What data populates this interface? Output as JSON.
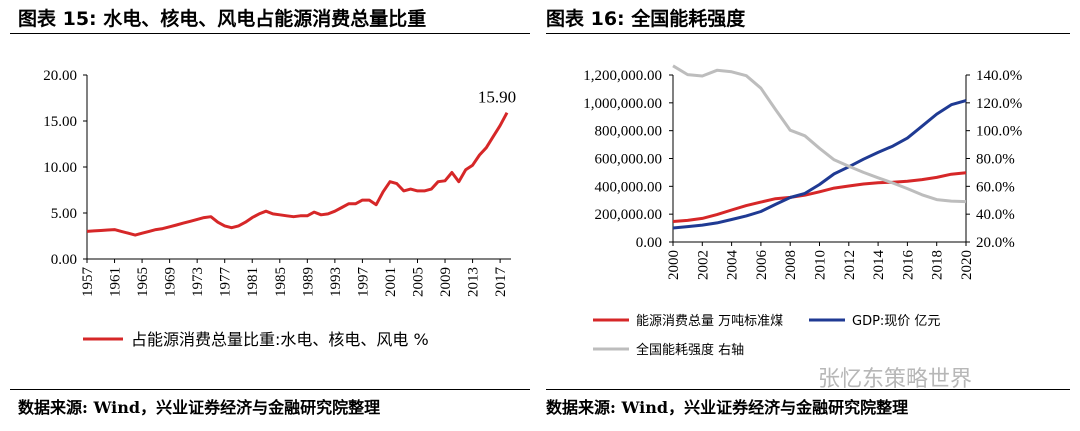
{
  "left": {
    "title": "图表 15:  水电、核电、风电占能源消费总量比重",
    "source": "数据来源:  Wind，兴业证券经济与金融研究院整理"
  },
  "right": {
    "title": "图表 16:  全国能耗强度",
    "source": "数据来源:  Wind，兴业证券经济与金融研究院整理"
  },
  "watermark": "张忆东策略世界",
  "chart_data": [
    {
      "type": "line",
      "title": "",
      "xlabel": "",
      "ylabel": "",
      "ylim": [
        0,
        20
      ],
      "yticks": [
        "0.00",
        "5.00",
        "10.00",
        "15.00",
        "20.00"
      ],
      "xticks": [
        "1957",
        "1961",
        "1965",
        "1969",
        "1973",
        "1977",
        "1981",
        "1985",
        "1989",
        "1993",
        "1997",
        "2001",
        "2005",
        "2009",
        "2013",
        "2017"
      ],
      "annotation": "15.90",
      "legend_position": "bottom",
      "grid": false,
      "series": [
        {
          "name": "占能源消费总量比重:水电、核电、风电 %",
          "color": "#d62728",
          "x": [
            1957,
            1958,
            1959,
            1960,
            1961,
            1962,
            1963,
            1964,
            1965,
            1966,
            1967,
            1968,
            1969,
            1970,
            1971,
            1972,
            1973,
            1974,
            1975,
            1976,
            1977,
            1978,
            1979,
            1980,
            1981,
            1982,
            1983,
            1984,
            1985,
            1986,
            1987,
            1988,
            1989,
            1990,
            1991,
            1992,
            1993,
            1994,
            1995,
            1996,
            1997,
            1998,
            1999,
            2000,
            2001,
            2002,
            2003,
            2004,
            2005,
            2006,
            2007,
            2008,
            2009,
            2010,
            2011,
            2012,
            2013,
            2014,
            2015,
            2016,
            2017,
            2018
          ],
          "values": [
            3.0,
            3.05,
            3.1,
            3.15,
            3.2,
            3.0,
            2.8,
            2.6,
            2.8,
            3.0,
            3.2,
            3.3,
            3.5,
            3.7,
            3.9,
            4.1,
            4.3,
            4.5,
            4.6,
            4.0,
            3.6,
            3.4,
            3.6,
            4.0,
            4.5,
            4.9,
            5.2,
            4.9,
            4.8,
            4.7,
            4.6,
            4.7,
            4.7,
            5.1,
            4.8,
            4.9,
            5.2,
            5.6,
            6.0,
            6.0,
            6.4,
            6.4,
            5.9,
            7.3,
            8.4,
            8.2,
            7.4,
            7.6,
            7.4,
            7.4,
            7.6,
            8.4,
            8.5,
            9.4,
            8.4,
            9.7,
            10.2,
            11.3,
            12.1,
            13.3,
            14.5,
            15.9
          ]
        }
      ]
    },
    {
      "type": "line",
      "title": "",
      "xlabel": "",
      "ylabel": "",
      "ylim": [
        0,
        1200000
      ],
      "ylim_right": [
        20,
        140
      ],
      "yticks": [
        "0.00",
        "200,000.00",
        "400,000.00",
        "600,000.00",
        "800,000.00",
        "1,000,000.00",
        "1,200,000.00"
      ],
      "yticks_right": [
        "20.0%",
        "40.0%",
        "60.0%",
        "80.0%",
        "100.0%",
        "120.0%",
        "140.0%"
      ],
      "xticks": [
        "2000",
        "2002",
        "2004",
        "2006",
        "2008",
        "2010",
        "2012",
        "2014",
        "2016",
        "2018",
        "2020"
      ],
      "legend_position": "bottom",
      "grid": false,
      "series": [
        {
          "name": "能源消费总量 万吨标准煤",
          "axis": "left",
          "color": "#d62728",
          "x": [
            2000,
            2001,
            2002,
            2003,
            2004,
            2005,
            2006,
            2007,
            2008,
            2009,
            2010,
            2011,
            2012,
            2013,
            2014,
            2015,
            2016,
            2017,
            2018,
            2019,
            2020
          ],
          "values": [
            146964,
            155547,
            169577,
            197083,
            230281,
            261369,
            286467,
            311442,
            320611,
            336126,
            360648,
            387043,
            402138,
            416913,
            425806,
            429905,
            435819,
            448529,
            464000,
            487000,
            498000
          ]
        },
        {
          "name": "GDP:现价 亿元",
          "axis": "left",
          "color": "#1f3a93",
          "x": [
            2000,
            2001,
            2002,
            2003,
            2004,
            2005,
            2006,
            2007,
            2008,
            2009,
            2010,
            2011,
            2012,
            2013,
            2014,
            2015,
            2016,
            2017,
            2018,
            2019,
            2020
          ],
          "values": [
            100280,
            110863,
            121717,
            137422,
            161840,
            187319,
            219439,
            270232,
            319516,
            349081,
            413030,
            489301,
            540367,
            595244,
            643974,
            689052,
            746395,
            832036,
            919281,
            986515,
            1015986
          ]
        },
        {
          "name": "全国能耗强度 右轴",
          "axis": "right",
          "color": "#bdbdbd",
          "x": [
            2000,
            2001,
            2002,
            2003,
            2004,
            2005,
            2006,
            2007,
            2008,
            2009,
            2010,
            2011,
            2012,
            2013,
            2014,
            2015,
            2016,
            2017,
            2018,
            2019,
            2020
          ],
          "values": [
            146.6,
            140.3,
            139.3,
            143.4,
            142.3,
            139.5,
            130.5,
            115.2,
            100.3,
            96.3,
            87.3,
            79.1,
            74.4,
            70.0,
            66.1,
            62.4,
            58.4,
            53.9,
            50.5,
            49.4,
            49.0
          ]
        }
      ]
    }
  ]
}
